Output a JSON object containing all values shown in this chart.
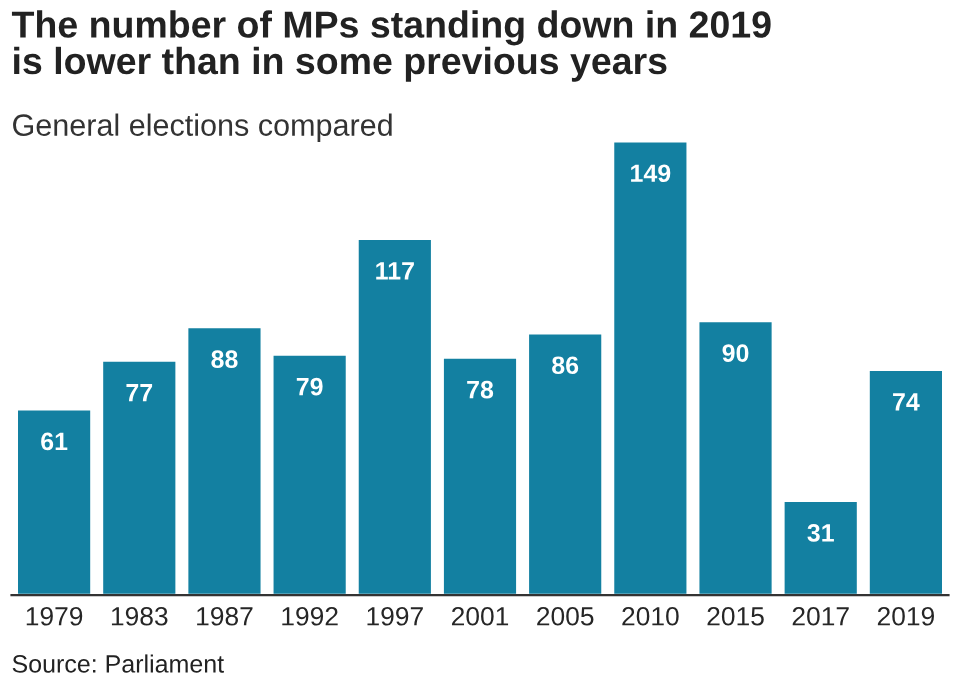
{
  "chart_data": {
    "type": "bar",
    "title": "The number of MPs standing down in 2019\nis lower than in some previous years",
    "subtitle": "General elections compared",
    "categories": [
      "1979",
      "1983",
      "1987",
      "1992",
      "1997",
      "2001",
      "2005",
      "2010",
      "2015",
      "2017",
      "2019"
    ],
    "values": [
      61,
      77,
      88,
      79,
      117,
      78,
      86,
      149,
      90,
      31,
      74
    ],
    "color": "#1380a1",
    "data_labels": true,
    "grid": false,
    "annotations": [
      "Source: Parliament"
    ]
  }
}
